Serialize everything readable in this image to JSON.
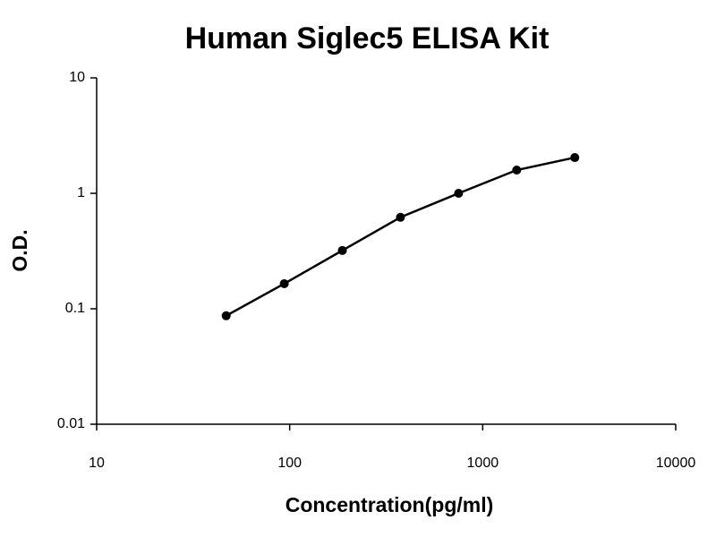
{
  "chart_data": {
    "type": "line",
    "title": "Human Siglec5 ELISA Kit",
    "x_label": "Concentration(pg/ml)",
    "y_label": "O.D.",
    "x": [
      46.875,
      93.75,
      187.5,
      375,
      750,
      1500,
      3000
    ],
    "values": [
      0.087,
      0.165,
      0.32,
      0.62,
      1.0,
      1.59,
      2.04
    ],
    "color": "#000000",
    "x_log": true,
    "y_log": true,
    "xlim": [
      10,
      10000
    ],
    "ylim": [
      0.01,
      10
    ],
    "xticks": [
      10,
      100,
      1000,
      10000
    ],
    "yticks": [
      0.01,
      0.1,
      1,
      10
    ]
  }
}
